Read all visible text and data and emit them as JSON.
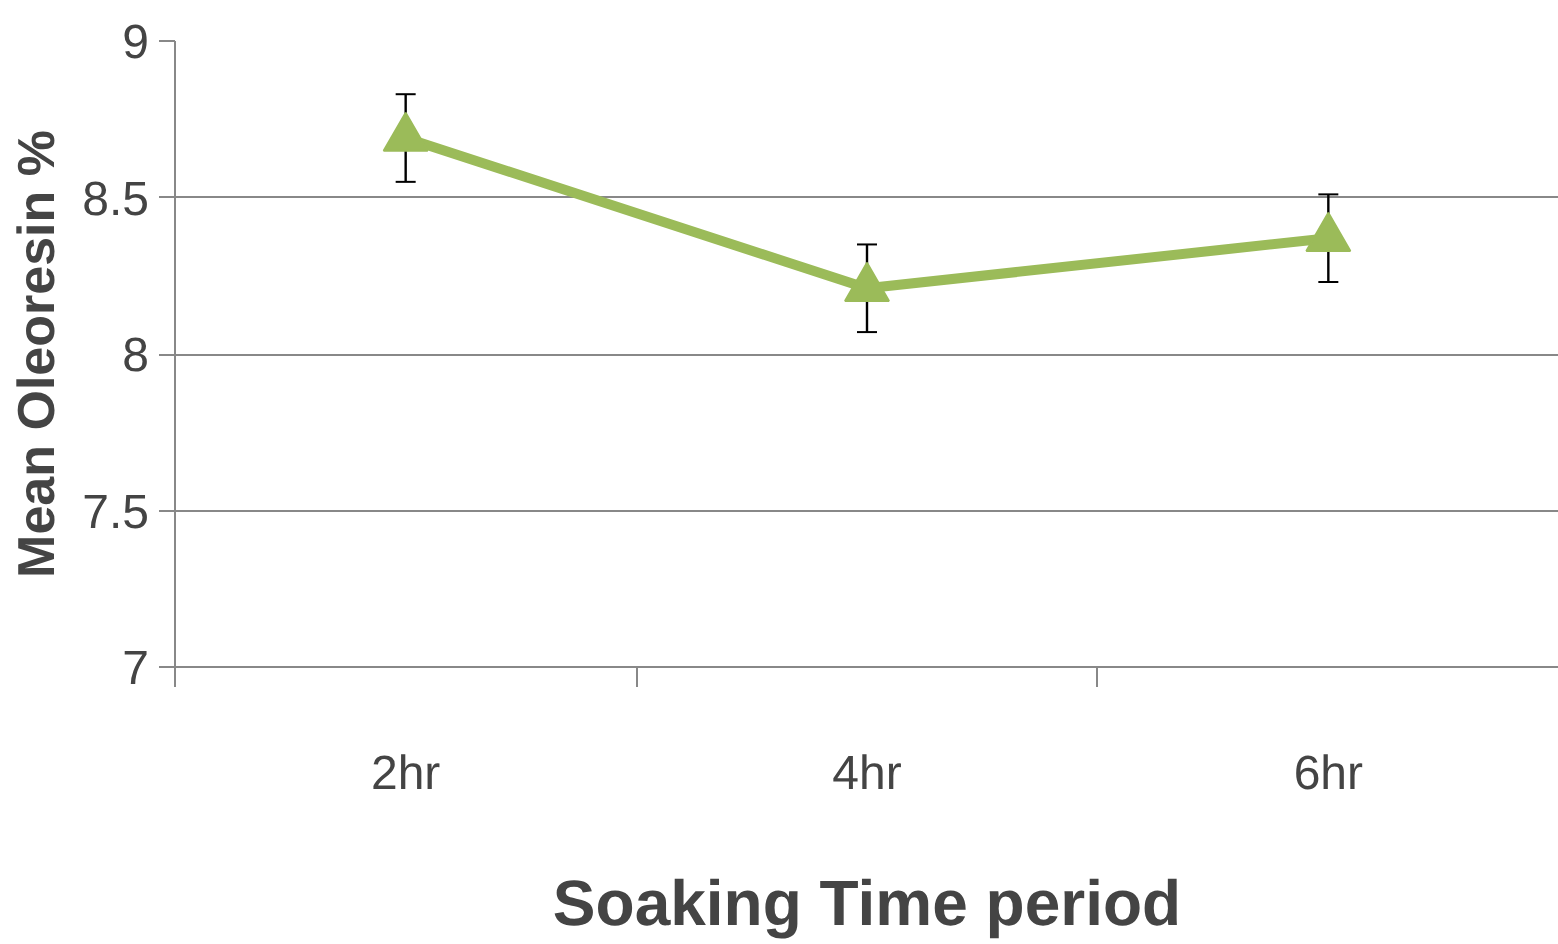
{
  "chart_data": {
    "type": "line",
    "xlabel": "Soaking Time period",
    "ylabel": "Mean Oleoresin %",
    "categories": [
      "2hr",
      "4hr",
      "6hr"
    ],
    "series": [
      {
        "color": "#9bbb59",
        "values": [
          8.69,
          8.21,
          8.37
        ],
        "errors": [
          0.14,
          0.14,
          0.14
        ]
      }
    ],
    "ylim": [
      7,
      9
    ],
    "yticks": [
      7,
      7.5,
      8,
      8.5,
      9
    ],
    "grid": "y",
    "marker": "triangle",
    "line_style": "solid"
  }
}
